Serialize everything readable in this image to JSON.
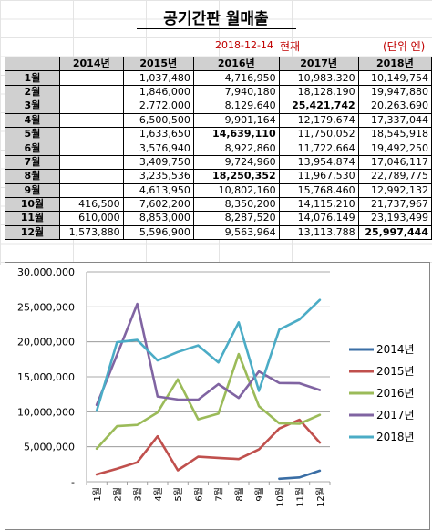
{
  "title": "공기간판 월매출",
  "date": "2018-12-14",
  "now_label": "현재",
  "unit_label": "(단위 엔)",
  "table": {
    "headers": [
      "",
      "2014년",
      "2015년",
      "2016년",
      "2017년",
      "2018년"
    ],
    "rows": [
      [
        "1월",
        "",
        "1,037,480",
        "4,716,950",
        "10,983,320",
        "10,149,754"
      ],
      [
        "2월",
        "",
        "1,846,000",
        "7,940,180",
        "18,128,190",
        "19,947,880"
      ],
      [
        "3월",
        "",
        "2,772,000",
        "8,129,640",
        "25,421,742",
        "20,263,690"
      ],
      [
        "4월",
        "",
        "6,500,500",
        "9,901,164",
        "12,179,674",
        "17,337,044"
      ],
      [
        "5월",
        "",
        "1,633,650",
        "14,639,110",
        "11,750,052",
        "18,545,918"
      ],
      [
        "6월",
        "",
        "3,576,940",
        "8,922,860",
        "11,722,664",
        "19,492,250"
      ],
      [
        "7월",
        "",
        "3,409,750",
        "9,724,960",
        "13,954,874",
        "17,046,117"
      ],
      [
        "8월",
        "",
        "3,235,536",
        "18,250,352",
        "11,967,530",
        "22,789,775"
      ],
      [
        "9월",
        "",
        "4,613,950",
        "10,802,160",
        "15,768,460",
        "12,992,132"
      ],
      [
        "10월",
        "416,500",
        "7,602,200",
        "8,350,200",
        "14,115,210",
        "21,737,967"
      ],
      [
        "11월",
        "610,000",
        "8,853,000",
        "8,287,520",
        "14,076,149",
        "23,193,499"
      ],
      [
        "12월",
        "1,573,880",
        "5,596,900",
        "9,563,964",
        "13,113,788",
        "25,997,444"
      ]
    ],
    "bold_cells": [
      [
        2,
        4
      ],
      [
        4,
        3
      ],
      [
        7,
        3
      ],
      [
        11,
        5
      ]
    ]
  },
  "chart_data": {
    "type": "line",
    "categories": [
      "1월",
      "2월",
      "3월",
      "4월",
      "5월",
      "6월",
      "7월",
      "8월",
      "9월",
      "10월",
      "11월",
      "12월"
    ],
    "ylim": [
      0,
      30000000
    ],
    "yticks": [
      "-",
      "5,000,000",
      "10,000,000",
      "15,000,000",
      "20,000,000",
      "25,000,000",
      "30,000,000"
    ],
    "grid": true,
    "legend": "right",
    "series": [
      {
        "name": "2014년",
        "color": "#3a6ea5",
        "values": [
          null,
          null,
          null,
          null,
          null,
          null,
          null,
          null,
          null,
          416500,
          610000,
          1573880
        ]
      },
      {
        "name": "2015년",
        "color": "#c0504d",
        "values": [
          1037480,
          1846000,
          2772000,
          6500500,
          1633650,
          3576940,
          3409750,
          3235536,
          4613950,
          7602200,
          8853000,
          5596900
        ]
      },
      {
        "name": "2016년",
        "color": "#9bbb59",
        "values": [
          4716950,
          7940180,
          8129640,
          9901164,
          14639110,
          8922860,
          9724960,
          18250352,
          10802160,
          8350200,
          8287520,
          9563964
        ]
      },
      {
        "name": "2017년",
        "color": "#8064a2",
        "values": [
          10983320,
          18128190,
          25421742,
          12179674,
          11750052,
          11722664,
          13954874,
          11967530,
          15768460,
          14115210,
          14076149,
          13113788
        ]
      },
      {
        "name": "2018년",
        "color": "#4bacc6",
        "values": [
          10149754,
          19947880,
          20263690,
          17337044,
          18545918,
          19492250,
          17046117,
          22789775,
          12992132,
          21737967,
          23193499,
          25997444
        ]
      }
    ]
  }
}
